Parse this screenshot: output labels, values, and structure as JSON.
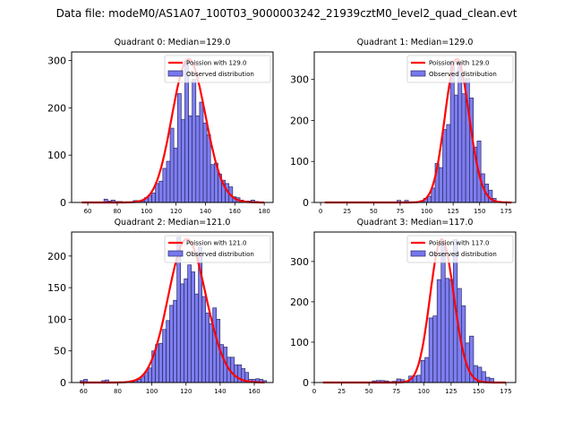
{
  "figure": {
    "suptitle": "Data file: modeM0/AS1A07_100T03_9000003242_21939cztM0_level2_quad_clean.evt"
  },
  "colors": {
    "bar_fill": "#7777ee",
    "bar_edge": "#2a2a66",
    "poisson_line": "#ff0000"
  },
  "chart_data": [
    {
      "type": "bar",
      "title": "Quadrant 0: Median=129.0",
      "legend": [
        "Poission with 129.0",
        "Observed distribution"
      ],
      "legend_position": "top-right",
      "xlim": [
        49,
        186
      ],
      "ylim": [
        0,
        318
      ],
      "xticks": [
        60,
        80,
        100,
        120,
        140,
        160,
        180
      ],
      "yticks": [
        0,
        100,
        200,
        300
      ],
      "bin_width": 2.5,
      "bins": [
        56,
        58.5,
        61,
        63.5,
        66,
        68.5,
        71,
        73.5,
        76,
        78.5,
        81,
        83.5,
        86,
        88.5,
        91,
        93.5,
        96,
        98.5,
        101,
        103.5,
        106,
        108.5,
        111,
        113.5,
        116,
        118.5,
        121,
        123.5,
        126,
        128.5,
        131,
        133.5,
        136,
        138.5,
        141,
        143.5,
        146,
        148.5,
        151,
        153.5,
        156,
        158.5,
        161,
        163.5,
        166,
        168.5,
        171,
        173.5,
        176
      ],
      "values": [
        0,
        0,
        0,
        0,
        0,
        0,
        7,
        3,
        5,
        2,
        2,
        1,
        0,
        1,
        4,
        4,
        3,
        10,
        15,
        20,
        40,
        45,
        72,
        87,
        157,
        115,
        230,
        175,
        300,
        183,
        260,
        183,
        212,
        168,
        143,
        80,
        83,
        60,
        47,
        40,
        33,
        12,
        10,
        5,
        3,
        3,
        5,
        2,
        0
      ],
      "poisson_mean": 129.0,
      "poisson_peak": 303
    },
    {
      "type": "bar",
      "title": "Quadrant 1: Median=129.0",
      "legend": [
        "Poission with 129.0",
        "Observed distribution"
      ],
      "legend_position": "top-right",
      "xlim": [
        -6,
        184
      ],
      "ylim": [
        0,
        367
      ],
      "xticks": [
        0,
        25,
        50,
        75,
        100,
        125,
        150,
        175
      ],
      "yticks": [
        0,
        100,
        200,
        300
      ],
      "bin_width": 3.6,
      "bins": [
        72,
        75.6,
        79.2,
        82.8,
        86.4,
        90,
        93.6,
        97.2,
        100.8,
        104.4,
        108,
        111.6,
        115.2,
        118.8,
        122.4,
        126,
        129.6,
        133.2,
        136.8,
        140.4,
        144,
        147.6,
        151.2,
        154.8,
        158.4,
        162,
        165.6,
        169.2
      ],
      "values": [
        5,
        1,
        5,
        1,
        1,
        2,
        4,
        10,
        15,
        35,
        95,
        85,
        178,
        190,
        345,
        262,
        342,
        265,
        302,
        255,
        135,
        150,
        70,
        45,
        30,
        10,
        2,
        1
      ],
      "poisson_mean": 129.0,
      "poisson_peak": 350
    },
    {
      "type": "bar",
      "title": "Quadrant 2: Median=121.0",
      "legend": [
        "Poission with 121.0",
        "Observed distribution"
      ],
      "legend_position": "top-right",
      "xlim": [
        53,
        171
      ],
      "ylim": [
        0,
        238
      ],
      "xticks": [
        60,
        80,
        100,
        120,
        140,
        160
      ],
      "yticks": [
        0,
        50,
        100,
        150,
        200
      ],
      "bin_width": 2.1,
      "bins": [
        58,
        60.1,
        62.2,
        64.3,
        66.4,
        68.5,
        70.6,
        72.7,
        74.8,
        76.9,
        79,
        81.1,
        83.2,
        85.3,
        87.4,
        89.5,
        91.6,
        93.7,
        95.8,
        97.9,
        100,
        102.1,
        104.2,
        106.3,
        108.4,
        110.5,
        112.6,
        114.7,
        116.8,
        118.9,
        121,
        123.1,
        125.2,
        127.3,
        129.4,
        131.5,
        133.6,
        135.7,
        137.8,
        139.9,
        142,
        144.1,
        146.2,
        148.3,
        150.4,
        152.5,
        154.6,
        156.7,
        158.8,
        160.9,
        163,
        165.1
      ],
      "values": [
        3,
        5,
        1,
        1,
        1,
        1,
        3,
        4,
        1,
        1,
        1,
        1,
        1,
        1,
        3,
        3,
        5,
        10,
        17,
        23,
        50,
        60,
        62,
        84,
        98,
        122,
        130,
        230,
        156,
        164,
        186,
        175,
        140,
        214,
        136,
        110,
        93,
        118,
        100,
        60,
        56,
        40,
        40,
        28,
        28,
        22,
        16,
        5,
        5,
        6,
        5,
        3
      ],
      "poisson_mean": 121.0,
      "poisson_peak": 227
    },
    {
      "type": "bar",
      "title": "Quadrant 3: Median=117.0",
      "legend": [
        "Poission with 117.0",
        "Observed distribution"
      ],
      "legend_position": "top-right",
      "xlim": [
        0,
        184
      ],
      "ylim": [
        0,
        373
      ],
      "xticks": [
        0,
        25,
        50,
        75,
        100,
        125,
        150,
        175
      ],
      "yticks": [
        0,
        100,
        200,
        300
      ],
      "bin_width": 3.7,
      "bins": [
        53,
        56.7,
        60.4,
        64.1,
        67.8,
        71.5,
        75.2,
        78.9,
        82.6,
        86.3,
        90,
        93.7,
        97.4,
        101.1,
        104.8,
        108.5,
        112.2,
        115.9,
        119.6,
        123.3,
        127,
        130.7,
        134.4,
        138.1,
        141.8,
        145.5,
        149.2,
        152.9,
        156.6,
        160.3
      ],
      "values": [
        4,
        5,
        5,
        4,
        2,
        3,
        9,
        7,
        1,
        16,
        16,
        18,
        55,
        62,
        160,
        165,
        255,
        350,
        258,
        255,
        354,
        233,
        190,
        98,
        115,
        42,
        38,
        27,
        13,
        10
      ],
      "poisson_mean": 117.0,
      "poisson_peak": 355
    }
  ]
}
